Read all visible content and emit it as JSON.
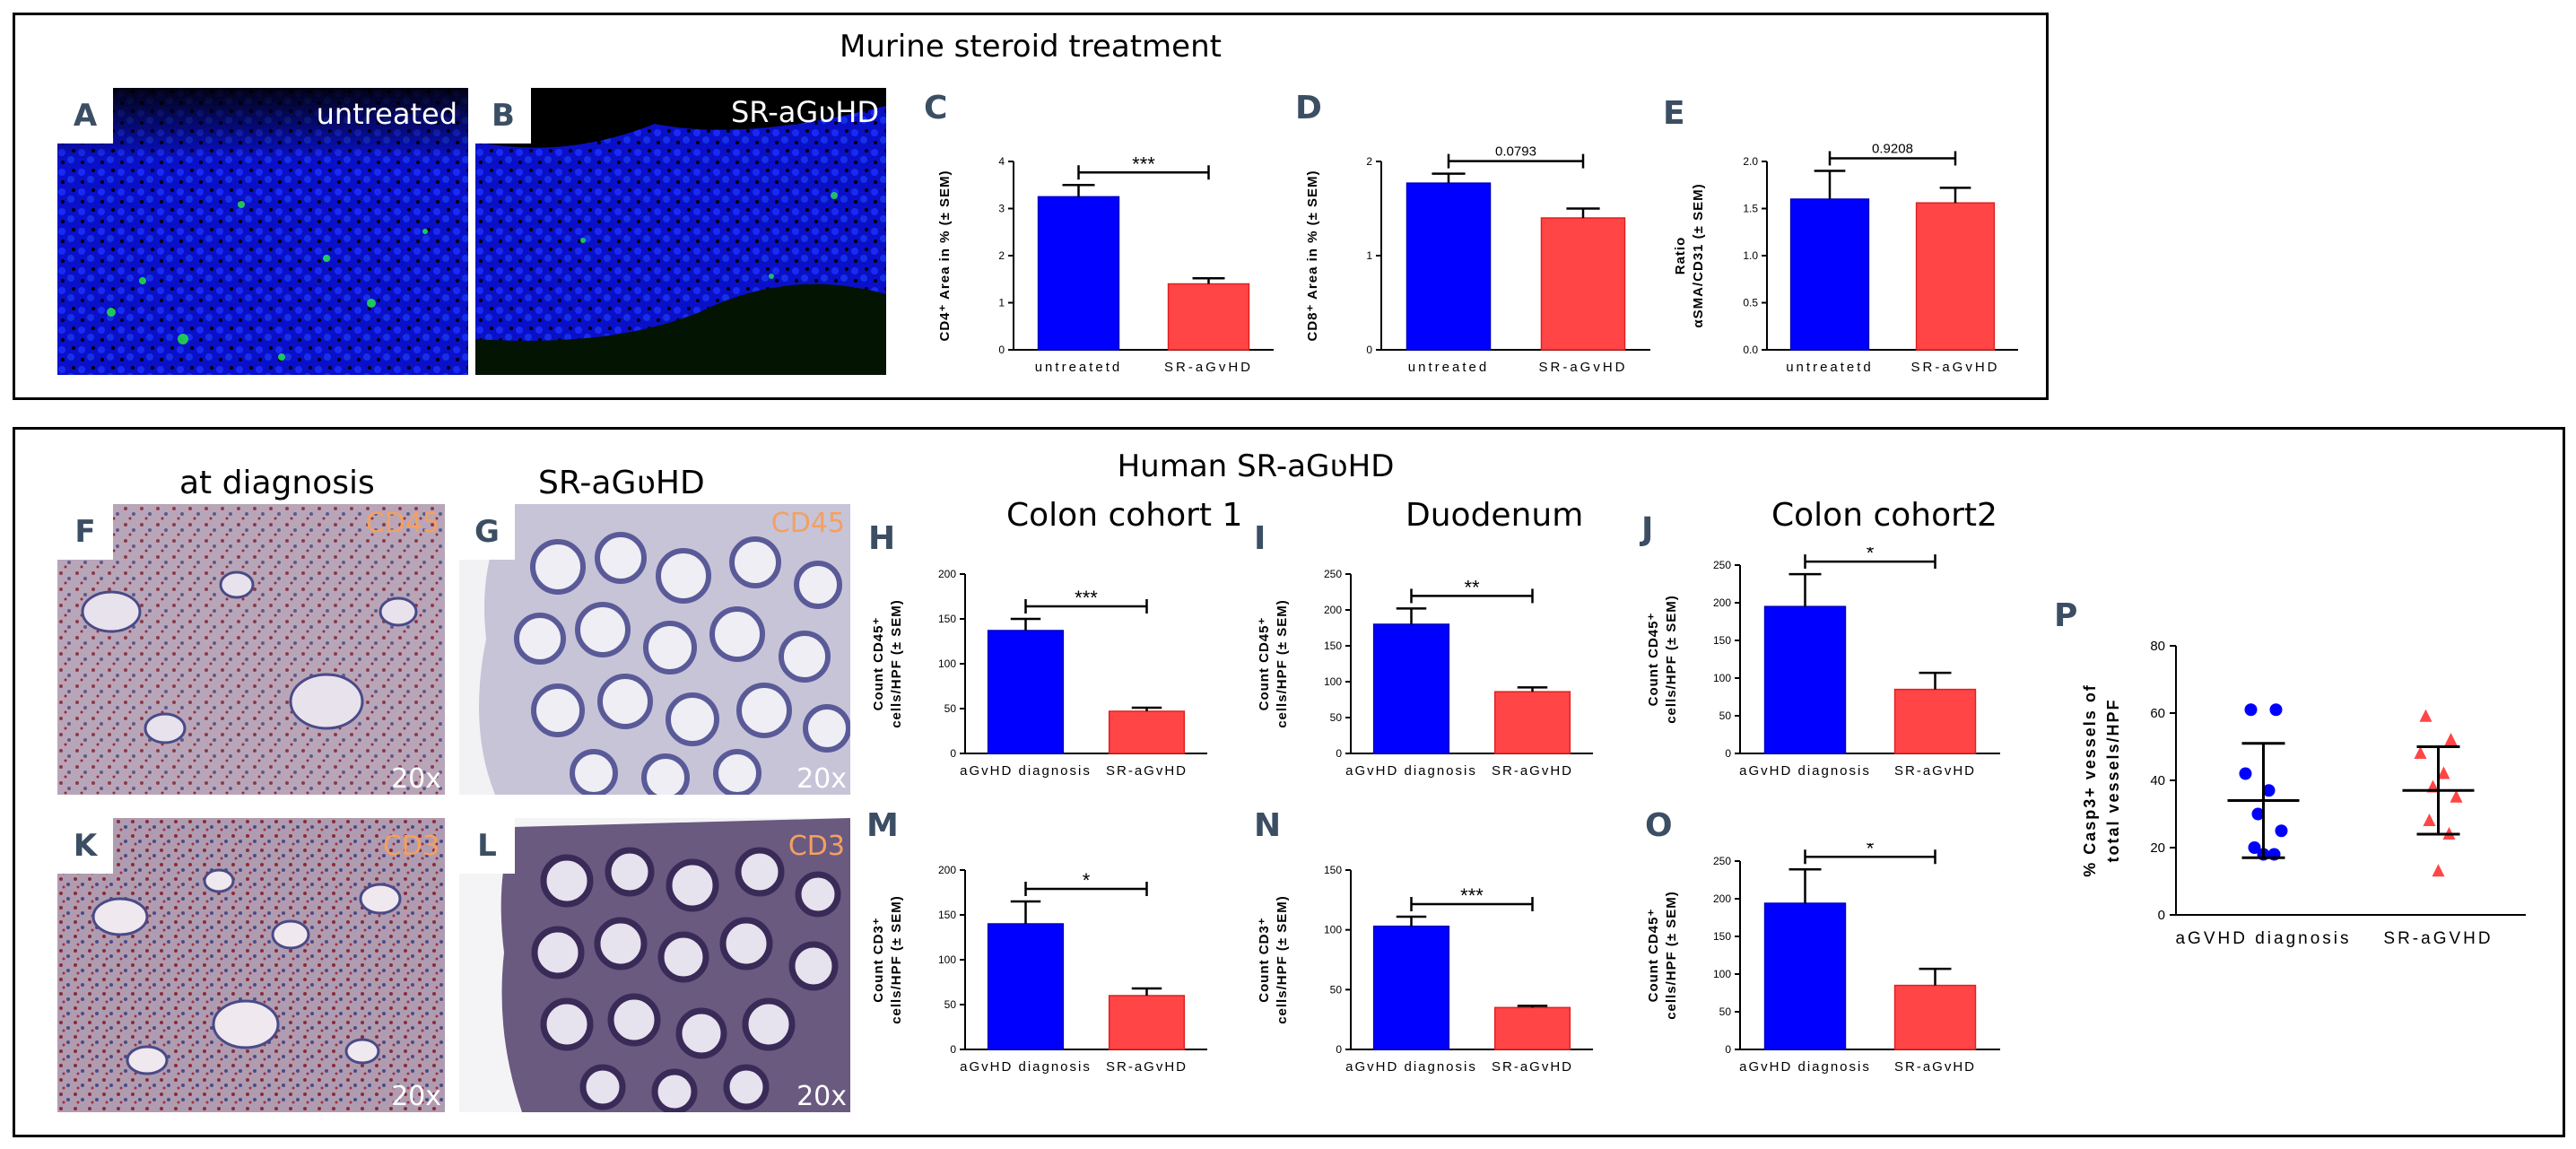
{
  "murine": {
    "title": "Murine steroid treatment",
    "panel_a": {
      "letter": "A",
      "label": "untreated"
    },
    "panel_b": {
      "letter": "B",
      "label": "SR-aGʋHD"
    }
  },
  "human": {
    "title": "Human SR-aGʋHD",
    "at_diagnosis": "at diagnosis",
    "sr_agvhd": "SR-aGʋHD",
    "col1": "Colon cohort 1",
    "col2": "Duodenum",
    "col3": "Colon cohort2",
    "panels": {
      "F": {
        "letter": "F",
        "marker": "CD45",
        "mag": "20x"
      },
      "G": {
        "letter": "G",
        "marker": "CD45",
        "mag": "20x"
      },
      "K": {
        "letter": "K",
        "marker": "CD3",
        "mag": "20x"
      },
      "L": {
        "letter": "L",
        "marker": "CD3",
        "mag": "20x"
      }
    }
  },
  "colors": {
    "blue": "#0000ff",
    "red": "#ff4545",
    "red_edge": "#e02020"
  },
  "chart_data": [
    {
      "id": "C",
      "type": "bar",
      "categories": [
        "untreatetd",
        "SR-aGvHD"
      ],
      "values": [
        3.25,
        1.4
      ],
      "errors": [
        0.25,
        0.12
      ],
      "ylim": [
        0,
        4
      ],
      "yticks": [
        0,
        1,
        2,
        3,
        4
      ],
      "ylabel_lines": [
        "CD4⁺ Area in % (± SEM)"
      ],
      "sig": "***",
      "spaced_x": true,
      "colors": [
        "blue",
        "red"
      ]
    },
    {
      "id": "D",
      "type": "bar",
      "categories": [
        "untreated",
        "SR-aGvHD"
      ],
      "values": [
        1.77,
        1.4
      ],
      "errors": [
        0.1,
        0.1
      ],
      "ylim": [
        0,
        2
      ],
      "yticks": [
        0,
        1,
        2
      ],
      "ylabel_lines": [
        "CD8⁺ Area in % (± SEM)"
      ],
      "sig": "0.0793",
      "spaced_x": true,
      "colors": [
        "blue",
        "red"
      ]
    },
    {
      "id": "E",
      "type": "bar",
      "categories": [
        "untreatetd",
        "SR-aGvHD"
      ],
      "values": [
        1.6,
        1.56
      ],
      "errors": [
        0.3,
        0.16
      ],
      "ylim": [
        0,
        2
      ],
      "yticks": [
        "0.0",
        "0.5",
        "1.0",
        "1.5",
        "2.0"
      ],
      "ylabel_lines": [
        "Ratio",
        "αSMA/CD31 (± SEM)"
      ],
      "sig": "0.9208",
      "spaced_x": true,
      "colors": [
        "blue",
        "red"
      ]
    },
    {
      "id": "H",
      "type": "bar",
      "categories": [
        "aGvHD diagnosis",
        "SR-aGvHD"
      ],
      "values": [
        137,
        47
      ],
      "errors": [
        13,
        4
      ],
      "ylim": [
        0,
        200
      ],
      "yticks": [
        0,
        50,
        100,
        150,
        200
      ],
      "ylabel_lines": [
        "Count CD45⁺",
        "cells/HPF (± SEM)"
      ],
      "sig": "***",
      "spaced_x": false,
      "colors": [
        "blue",
        "red"
      ]
    },
    {
      "id": "I",
      "type": "bar",
      "categories": [
        "aGvHD diagnosis",
        "SR-aGvHD"
      ],
      "values": [
        180,
        86
      ],
      "errors": [
        22,
        6
      ],
      "ylim": [
        0,
        250
      ],
      "yticks": [
        0,
        50,
        100,
        150,
        200,
        250
      ],
      "ylabel_lines": [
        "Count CD45⁺",
        "cells/HPF (± SEM)"
      ],
      "sig": "**",
      "spaced_x": false,
      "colors": [
        "blue",
        "red"
      ]
    },
    {
      "id": "J",
      "type": "bar",
      "categories": [
        "aGvHD diagnosis",
        "SR-aGvHD"
      ],
      "values": [
        195,
        85
      ],
      "errors": [
        43,
        22
      ],
      "ylim": [
        0,
        250
      ],
      "yticks": [
        0,
        50,
        100,
        150,
        200,
        250
      ],
      "ylabel_lines": [
        "Count CD45⁺",
        "cells/HPF (± SEM)"
      ],
      "sig": "*",
      "spaced_x": false,
      "colors": [
        "blue",
        "red"
      ]
    },
    {
      "id": "M",
      "type": "bar",
      "categories": [
        "aGvHD diagnosis",
        "SR-aGvHD"
      ],
      "values": [
        140,
        60
      ],
      "errors": [
        25,
        8
      ],
      "ylim": [
        0,
        200
      ],
      "yticks": [
        0,
        50,
        100,
        150,
        200
      ],
      "ylabel_lines": [
        "Count CD3⁺",
        "cells/HPF (± SEM)"
      ],
      "sig": "*",
      "spaced_x": false,
      "colors": [
        "blue",
        "red"
      ]
    },
    {
      "id": "N",
      "type": "bar",
      "categories": [
        "aGvHD diagnosis",
        "SR-aGvHD"
      ],
      "values": [
        103,
        35
      ],
      "errors": [
        8,
        1.5
      ],
      "ylim": [
        0,
        150
      ],
      "yticks": [
        0,
        50,
        100,
        150
      ],
      "ylabel_lines": [
        "Count CD3⁺",
        "cells/HPF (± SEM)"
      ],
      "sig": "***",
      "spaced_x": false,
      "colors": [
        "blue",
        "red"
      ]
    },
    {
      "id": "O",
      "type": "bar",
      "categories": [
        "aGvHD diagnosis",
        "SR-aGvHD"
      ],
      "values": [
        194,
        85
      ],
      "errors": [
        45,
        22
      ],
      "ylim": [
        0,
        250
      ],
      "yticks": [
        0,
        50,
        100,
        150,
        200,
        250
      ],
      "ylabel_lines": [
        "Count CD45⁺",
        "cells/HPF (± SEM)"
      ],
      "sig": "*",
      "spaced_x": false,
      "colors": [
        "blue",
        "red"
      ]
    },
    {
      "id": "P",
      "type": "scatter",
      "categories": [
        "aGVHD diagnosis",
        "SR-aGVHD"
      ],
      "ylim": [
        0,
        80
      ],
      "yticks": [
        0,
        20,
        40,
        60,
        80
      ],
      "ylabel_lines": [
        "% Casp3+ vessels of",
        "total vessels/HPF"
      ],
      "groups": [
        {
          "name": "aGVHD diagnosis",
          "marker": "circle",
          "color": "blue",
          "points": [
            61,
            61,
            42,
            37,
            30,
            25,
            20,
            18,
            18
          ],
          "mean": 34,
          "sd_low": 17,
          "sd_high": 51
        },
        {
          "name": "SR-aGVHD",
          "marker": "triangle",
          "color": "red",
          "points": [
            59,
            52,
            48,
            42,
            38,
            35,
            28,
            24,
            13
          ],
          "mean": 37,
          "sd_low": 24,
          "sd_high": 50
        }
      ]
    }
  ]
}
